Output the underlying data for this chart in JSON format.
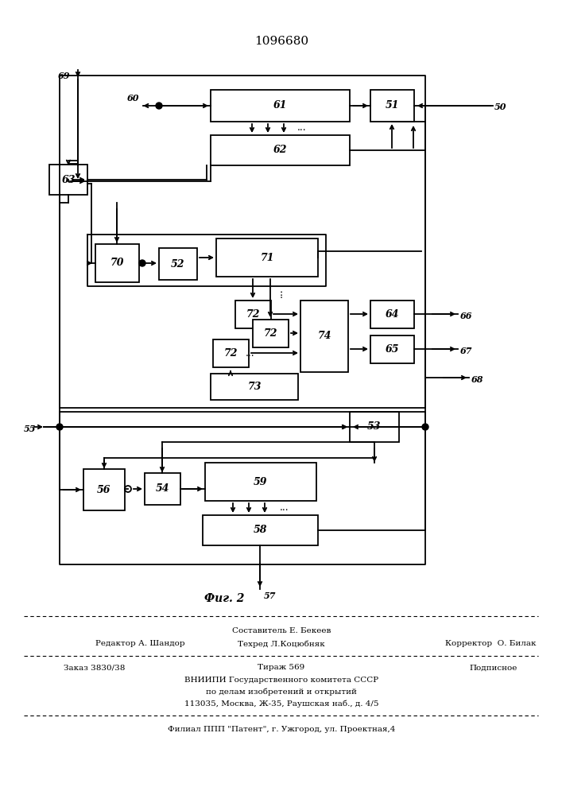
{
  "title": "1096680",
  "fig_label": "Фиг. 2",
  "background_color": "#ffffff",
  "line_color": "#000000",
  "footer_line1": "Составитель Е. Бекеев",
  "footer_line2a": "Редактор А. Шандор",
  "footer_line2b": "Техред Л.Коцюбняк",
  "footer_line2c": "Корректор  О. Билак",
  "footer_line3a": "Заказ 3830/38",
  "footer_line3b": "Тираж 569",
  "footer_line3c": "Подписное",
  "footer_line4": "ВНИИПИ Государственного комитета СССР",
  "footer_line5": "по делам изобретений и открытий",
  "footer_line6": "113035, Москва, Ж-35, Раушская наб., д. 4/5",
  "footer_line7": "Филиал ППП \"Патент\", г. Ужгород, ул. Проектная,4"
}
